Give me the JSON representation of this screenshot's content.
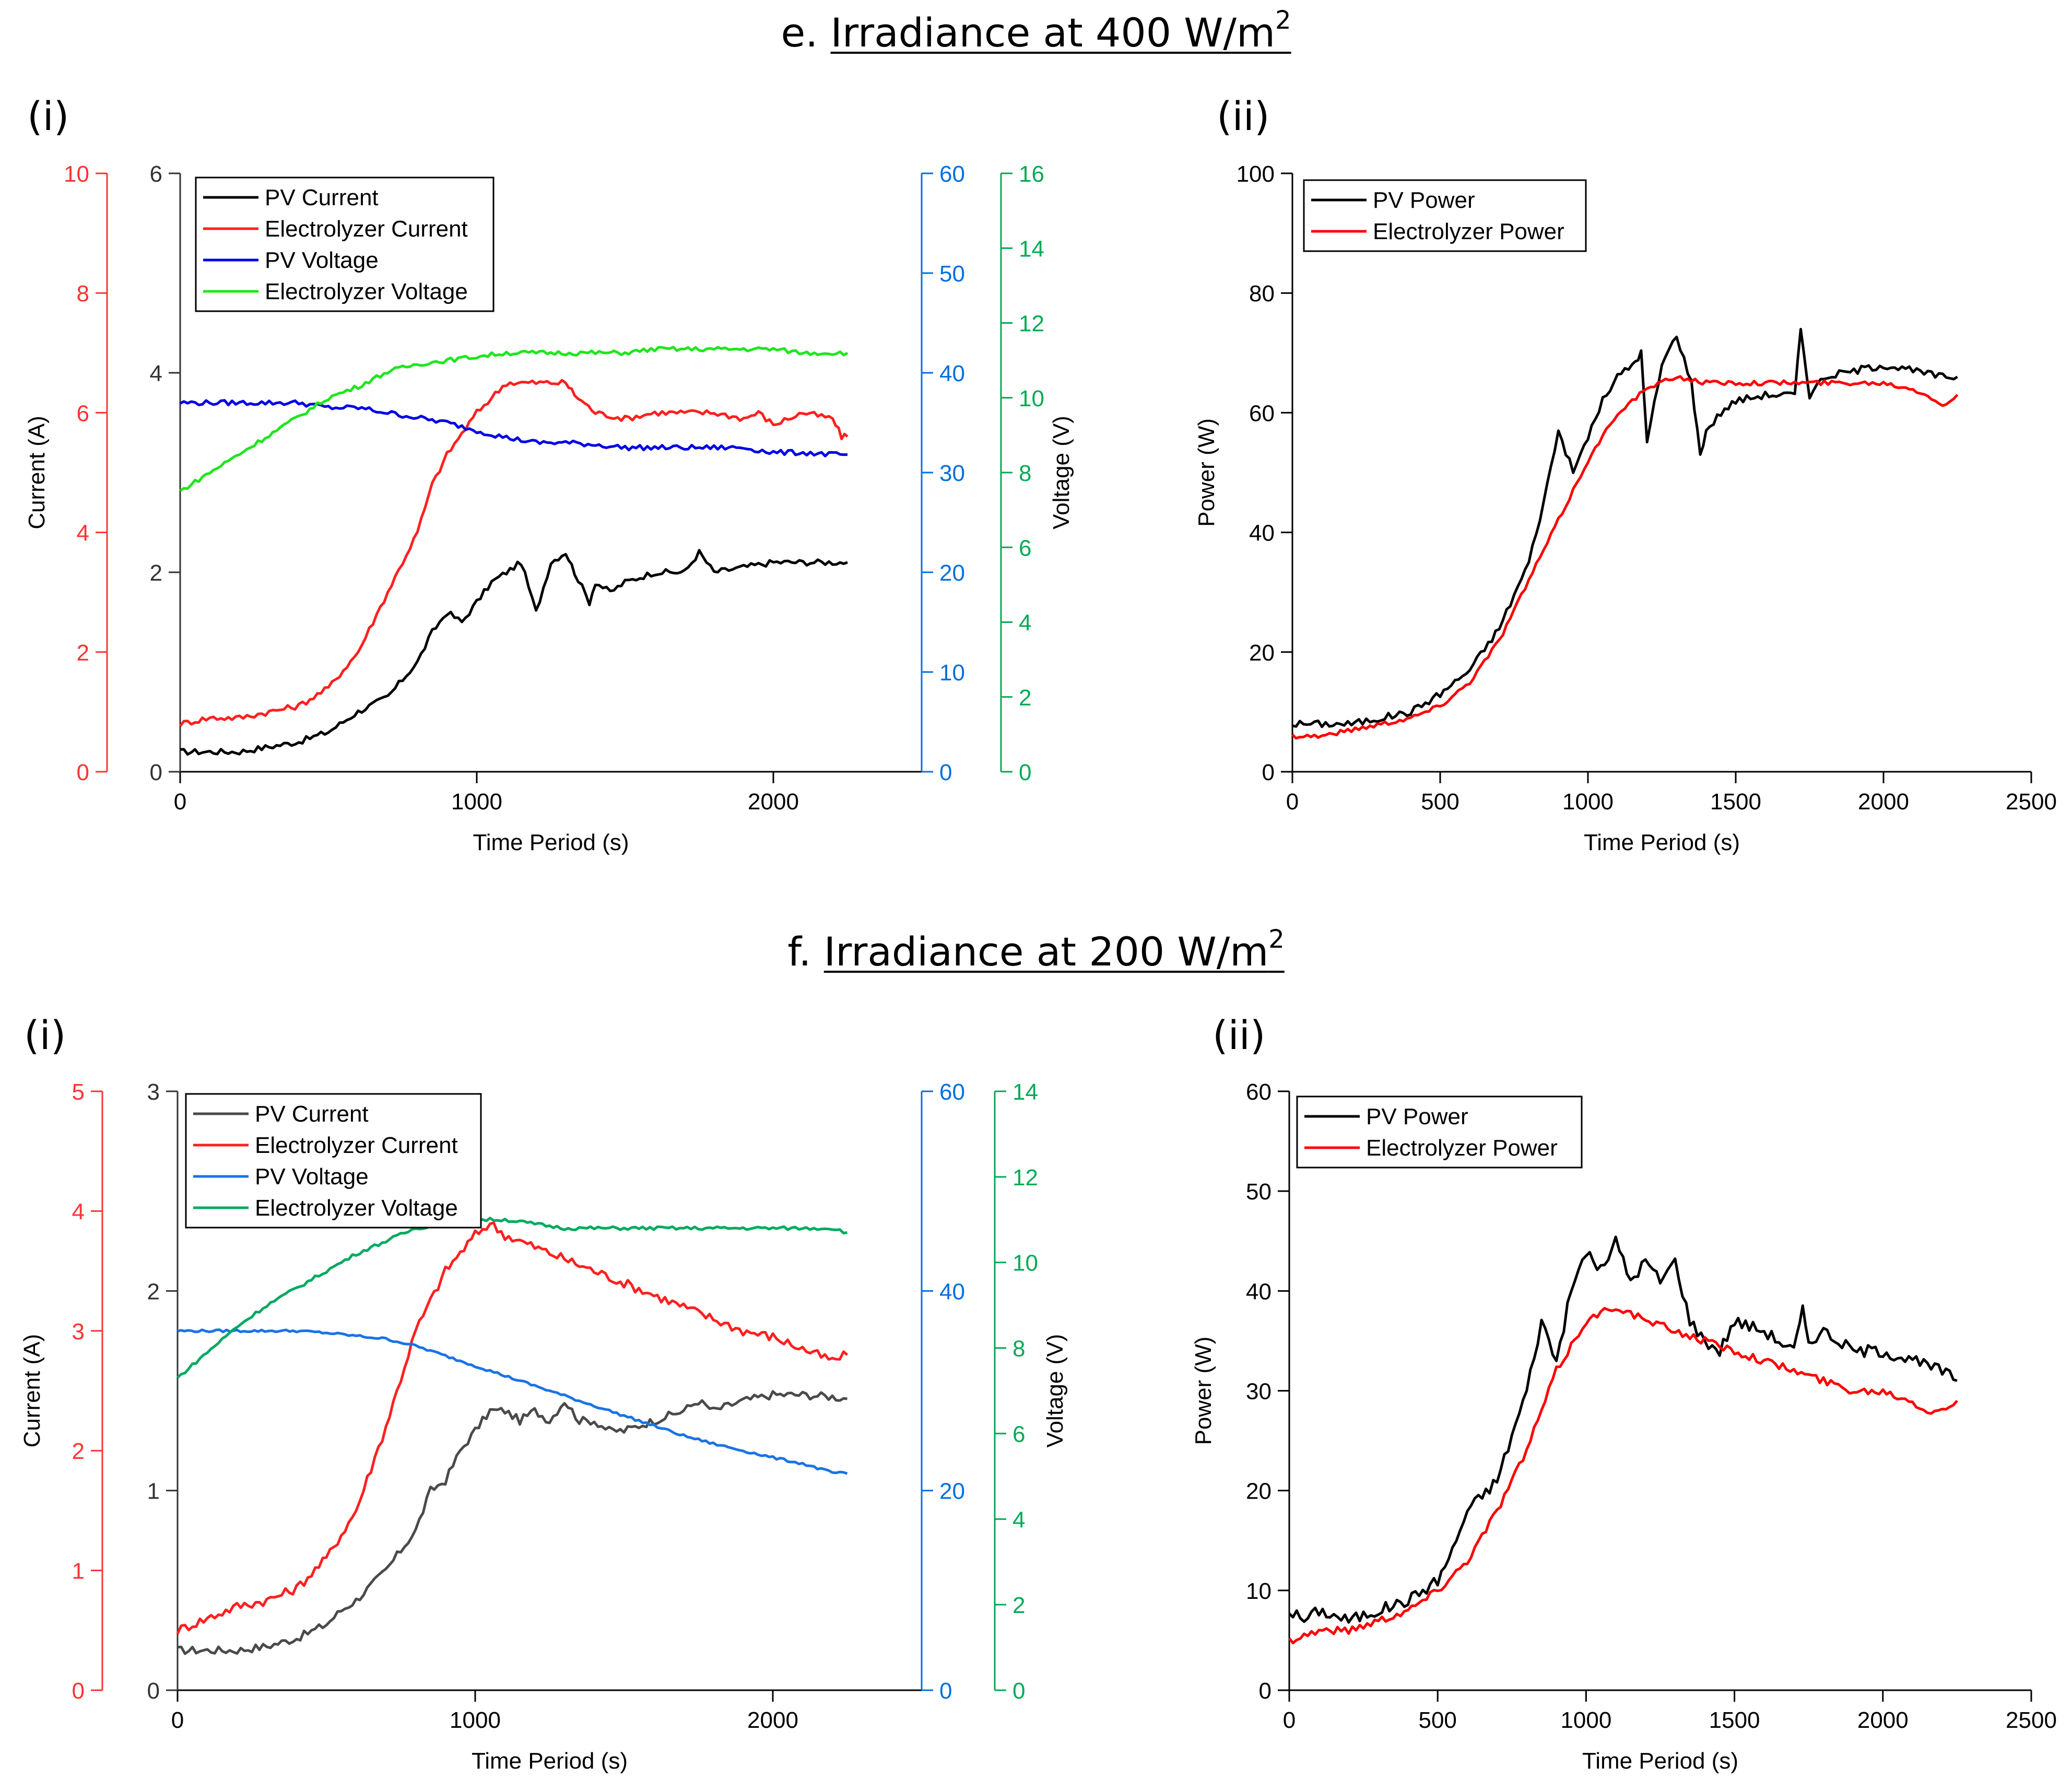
{
  "sections": [
    {
      "prefix": "e. ",
      "title_main": "Irradiance at 400 W/m",
      "title_sup": "2",
      "panel_i_label": "(i)",
      "panel_ii_label": "(ii)"
    },
    {
      "prefix": "f. ",
      "title_main": "Irradiance at 200 W/m",
      "title_sup": "2",
      "panel_i_label": "(i)",
      "panel_ii_label": "(ii)"
    }
  ],
  "colors": {
    "pv_current_e": "#000000",
    "pv_current_f": "#4a4a4a",
    "electrolyzer_current": "#ff2020",
    "pv_voltage_e": "#0000e6",
    "pv_voltage_f": "#1a73e6",
    "electrolyzer_voltage_e": "#1ee61e",
    "electrolyzer_voltage_f": "#00aa60",
    "red_axis": "#ff3333",
    "blue_axis": "#0070e0",
    "green_axis": "#00aa55",
    "pv_power": "#000000",
    "electrolyzer_power": "#ff0000"
  },
  "chart_data": [
    {
      "id": "e-i",
      "type": "line",
      "xlabel": "Time Period (s)",
      "ylabel_left": "Current (A)",
      "ylabel_right": "Voltage (V)",
      "xlim": [
        0,
        2500
      ],
      "xticks": [
        "0",
        "1000",
        "2000"
      ],
      "xtick_values": [
        0,
        1000,
        2000
      ],
      "axes": {
        "black_current": {
          "lim": [
            0,
            6
          ],
          "ticks": [
            "0",
            "2",
            "4",
            "6"
          ],
          "tick_values": [
            0,
            2,
            4,
            6
          ]
        },
        "red_current": {
          "lim": [
            0,
            10
          ],
          "ticks": [
            "0",
            "2",
            "4",
            "6",
            "8",
            "10"
          ],
          "tick_values": [
            0,
            2,
            4,
            6,
            8,
            10
          ]
        },
        "blue_voltage": {
          "lim": [
            0,
            60
          ],
          "ticks": [
            "0",
            "10",
            "20",
            "30",
            "40",
            "50",
            "60"
          ],
          "tick_values": [
            0,
            10,
            20,
            30,
            40,
            50,
            60
          ]
        },
        "green_voltage": {
          "lim": [
            0,
            16
          ],
          "ticks": [
            "0",
            "2",
            "4",
            "6",
            "8",
            "10",
            "12",
            "14",
            "16"
          ],
          "tick_values": [
            0,
            2,
            4,
            6,
            8,
            10,
            12,
            14,
            16
          ]
        }
      },
      "legend": [
        "PV Current",
        "Electrolyzer Current",
        "PV Voltage",
        "Electrolyzer Voltage"
      ],
      "legend_position": "top-left",
      "series": [
        {
          "name": "PV Current",
          "axis": "black_current",
          "x": [
            0,
            100,
            200,
            300,
            400,
            500,
            600,
            700,
            800,
            850,
            900,
            950,
            1000,
            1050,
            1100,
            1150,
            1200,
            1250,
            1300,
            1330,
            1380,
            1400,
            1450,
            1500,
            1600,
            1700,
            1750,
            1800,
            1900,
            2000,
            2100,
            2200,
            2250
          ],
          "y": [
            0.2,
            0.2,
            0.2,
            0.25,
            0.3,
            0.4,
            0.6,
            0.75,
            1.1,
            1.4,
            1.6,
            1.5,
            1.7,
            1.9,
            2.0,
            2.1,
            1.6,
            2.1,
            2.2,
            2.0,
            1.7,
            1.9,
            1.8,
            1.9,
            2.0,
            2.0,
            2.2,
            2.0,
            2.05,
            2.1,
            2.1,
            2.1,
            2.1
          ]
        },
        {
          "name": "Electrolyzer Current",
          "axis": "red_current",
          "x": [
            0,
            100,
            200,
            300,
            400,
            500,
            600,
            700,
            800,
            850,
            900,
            1000,
            1100,
            1200,
            1300,
            1330,
            1400,
            1500,
            1600,
            1700,
            1800,
            1900,
            1950,
            2000,
            2100,
            2200,
            2230,
            2250
          ],
          "y": [
            0.8,
            0.9,
            0.9,
            1.0,
            1.1,
            1.4,
            2.0,
            3.0,
            4.0,
            4.8,
            5.3,
            6.0,
            6.5,
            6.5,
            6.5,
            6.3,
            6.0,
            5.9,
            6.0,
            6.0,
            6.0,
            5.9,
            6.0,
            5.8,
            6.0,
            5.9,
            5.6,
            5.6
          ]
        },
        {
          "name": "PV Voltage",
          "axis": "blue_voltage",
          "x": [
            0,
            100,
            200,
            300,
            400,
            500,
            600,
            700,
            800,
            900,
            1000,
            1100,
            1200,
            1300,
            1400,
            1500,
            1600,
            1700,
            1800,
            1900,
            2000,
            2100,
            2200,
            2250
          ],
          "y": [
            37.0,
            37.0,
            37.0,
            37.0,
            37.0,
            36.5,
            36.5,
            36.0,
            35.5,
            35.0,
            34.2,
            33.5,
            33.0,
            33.0,
            32.8,
            32.5,
            32.5,
            32.5,
            32.5,
            32.5,
            32.0,
            32.0,
            31.8,
            31.8
          ]
        },
        {
          "name": "Electrolyzer Voltage",
          "axis": "green_voltage",
          "x": [
            0,
            100,
            200,
            300,
            400,
            500,
            600,
            700,
            800,
            900,
            1000,
            1100,
            1200,
            1300,
            1400,
            1500,
            1600,
            1700,
            1800,
            1900,
            2000,
            2100,
            2200,
            2250
          ],
          "y": [
            7.5,
            8.0,
            8.5,
            9.0,
            9.5,
            10.0,
            10.3,
            10.7,
            10.9,
            11.0,
            11.1,
            11.2,
            11.2,
            11.2,
            11.2,
            11.2,
            11.3,
            11.3,
            11.3,
            11.3,
            11.3,
            11.2,
            11.2,
            11.2
          ]
        }
      ]
    },
    {
      "id": "e-ii",
      "type": "line",
      "xlabel": "Time Period (s)",
      "ylabel": "Power (W)",
      "xlim": [
        0,
        2500
      ],
      "ylim": [
        0,
        100
      ],
      "xticks": [
        "0",
        "500",
        "1000",
        "1500",
        "2000",
        "2500"
      ],
      "xtick_values": [
        0,
        500,
        1000,
        1500,
        2000,
        2500
      ],
      "yticks": [
        "0",
        "20",
        "40",
        "60",
        "80",
        "100"
      ],
      "ytick_values": [
        0,
        20,
        40,
        60,
        80,
        100
      ],
      "legend": [
        "PV Power",
        "Electrolyzer Power"
      ],
      "legend_position": "top-left",
      "series": [
        {
          "name": "PV Power",
          "x": [
            0,
            100,
            200,
            300,
            400,
            500,
            550,
            600,
            700,
            800,
            850,
            900,
            950,
            1000,
            1050,
            1100,
            1150,
            1180,
            1200,
            1250,
            1300,
            1350,
            1380,
            1400,
            1450,
            1500,
            1600,
            1700,
            1720,
            1750,
            1800,
            1900,
            2000,
            2100,
            2200,
            2250
          ],
          "y": [
            8,
            8,
            8,
            9,
            10,
            13,
            15,
            17,
            24,
            35,
            45,
            57,
            50,
            56,
            62,
            66,
            68,
            70,
            55,
            68,
            73,
            65,
            53,
            57,
            60,
            62,
            63,
            63,
            74,
            63,
            66,
            67,
            68,
            67,
            66,
            66
          ]
        },
        {
          "name": "Electrolyzer Power",
          "x": [
            0,
            100,
            200,
            300,
            400,
            500,
            600,
            700,
            800,
            900,
            1000,
            1100,
            1200,
            1300,
            1400,
            1500,
            1600,
            1700,
            1800,
            1900,
            2000,
            2100,
            2150,
            2200,
            2250
          ],
          "y": [
            6,
            6,
            7,
            8,
            9,
            11,
            15,
            22,
            32,
            42,
            52,
            60,
            64,
            66,
            65,
            65,
            65,
            65,
            65,
            65,
            65,
            64,
            63,
            61,
            63
          ]
        }
      ]
    },
    {
      "id": "f-i",
      "type": "line",
      "xlabel": "Time Period (s)",
      "ylabel_left": "Current (A)",
      "ylabel_right": "Voltage (V)",
      "xlim": [
        0,
        2500
      ],
      "xticks": [
        "0",
        "1000",
        "2000"
      ],
      "xtick_values": [
        0,
        1000,
        2000
      ],
      "axes": {
        "black_current": {
          "lim": [
            0,
            3
          ],
          "ticks": [
            "0",
            "1",
            "2",
            "3"
          ],
          "tick_values": [
            0,
            1,
            2,
            3
          ]
        },
        "red_current": {
          "lim": [
            0,
            5
          ],
          "ticks": [
            "0",
            "1",
            "2",
            "3",
            "4",
            "5"
          ],
          "tick_values": [
            0,
            1,
            2,
            3,
            4,
            5
          ]
        },
        "blue_voltage": {
          "lim": [
            0,
            60
          ],
          "ticks": [
            "0",
            "20",
            "40",
            "60"
          ],
          "tick_values": [
            0,
            20,
            40,
            60
          ]
        },
        "green_voltage": {
          "lim": [
            0,
            14
          ],
          "ticks": [
            "0",
            "2",
            "4",
            "6",
            "8",
            "10",
            "12",
            "14"
          ],
          "tick_values": [
            0,
            2,
            4,
            6,
            8,
            10,
            12,
            14
          ]
        }
      },
      "legend": [
        "PV Current",
        "Electrolyzer Current",
        "PV Voltage",
        "Electrolyzer Voltage"
      ],
      "legend_position": "top-left",
      "series": [
        {
          "name": "PV Current",
          "axis": "black_current",
          "x": [
            0,
            100,
            200,
            300,
            400,
            500,
            550,
            600,
            700,
            800,
            850,
            900,
            950,
            1000,
            1050,
            1100,
            1150,
            1200,
            1250,
            1300,
            1350,
            1400,
            1450,
            1500,
            1600,
            1700,
            1750,
            1800,
            1900,
            2000,
            2100,
            2200,
            2250
          ],
          "y": [
            0.2,
            0.2,
            0.2,
            0.22,
            0.26,
            0.33,
            0.4,
            0.45,
            0.6,
            0.8,
            1.0,
            1.05,
            1.2,
            1.3,
            1.4,
            1.4,
            1.35,
            1.4,
            1.35,
            1.45,
            1.35,
            1.35,
            1.3,
            1.3,
            1.35,
            1.4,
            1.45,
            1.4,
            1.45,
            1.48,
            1.48,
            1.47,
            1.46
          ]
        },
        {
          "name": "Electrolyzer Current",
          "axis": "red_current",
          "x": [
            0,
            100,
            200,
            300,
            400,
            500,
            600,
            700,
            800,
            900,
            1000,
            1050,
            1100,
            1200,
            1300,
            1400,
            1500,
            1600,
            1700,
            1800,
            1900,
            2000,
            2100,
            2200,
            2250
          ],
          "y": [
            0.5,
            0.6,
            0.7,
            0.75,
            0.85,
            1.1,
            1.5,
            2.2,
            3.0,
            3.5,
            3.8,
            3.9,
            3.8,
            3.7,
            3.6,
            3.5,
            3.4,
            3.3,
            3.2,
            3.1,
            3.0,
            2.95,
            2.85,
            2.75,
            2.8
          ]
        },
        {
          "name": "PV Voltage",
          "axis": "blue_voltage",
          "x": [
            0,
            200,
            400,
            500,
            600,
            700,
            800,
            900,
            1000,
            1100,
            1200,
            1300,
            1400,
            1500,
            1600,
            1700,
            1800,
            1900,
            2000,
            2100,
            2200,
            2250
          ],
          "y": [
            36.0,
            36.0,
            36.0,
            35.8,
            35.5,
            35.2,
            34.5,
            33.5,
            32.5,
            31.5,
            30.5,
            29.5,
            28.5,
            27.5,
            26.5,
            25.5,
            24.7,
            24.0,
            23.3,
            22.7,
            21.8,
            21.7
          ]
        },
        {
          "name": "Electrolyzer Voltage",
          "axis": "green_voltage",
          "x": [
            0,
            100,
            200,
            300,
            400,
            500,
            600,
            700,
            800,
            900,
            1000,
            1100,
            1200,
            1300,
            1400,
            1500,
            1600,
            1700,
            1800,
            1900,
            2000,
            2100,
            2200,
            2250
          ],
          "y": [
            7.3,
            7.9,
            8.5,
            9.0,
            9.4,
            9.8,
            10.2,
            10.5,
            10.8,
            10.9,
            11.0,
            11.0,
            10.9,
            10.8,
            10.8,
            10.8,
            10.8,
            10.8,
            10.8,
            10.8,
            10.8,
            10.8,
            10.8,
            10.7
          ]
        }
      ]
    },
    {
      "id": "f-ii",
      "type": "line",
      "xlabel": "Time Period (s)",
      "ylabel": "Power (W)",
      "xlim": [
        0,
        2500
      ],
      "ylim": [
        0,
        60
      ],
      "xticks": [
        "0",
        "500",
        "1000",
        "1500",
        "2000",
        "2500"
      ],
      "xtick_values": [
        0,
        500,
        1000,
        1500,
        2000,
        2500
      ],
      "yticks": [
        "0",
        "10",
        "20",
        "30",
        "40",
        "50",
        "60"
      ],
      "ytick_values": [
        0,
        10,
        20,
        30,
        40,
        50,
        60
      ],
      "legend": [
        "PV Power",
        "Electrolyzer Power"
      ],
      "legend_position": "top-left",
      "series": [
        {
          "name": "PV Power",
          "x": [
            0,
            50,
            100,
            200,
            300,
            400,
            500,
            550,
            600,
            700,
            800,
            850,
            900,
            950,
            1000,
            1050,
            1100,
            1150,
            1200,
            1250,
            1300,
            1350,
            1400,
            1450,
            1500,
            1600,
            1700,
            1730,
            1750,
            1800,
            1900,
            2000,
            2100,
            2200,
            2250
          ],
          "y": [
            8,
            7,
            8,
            7,
            8,
            9,
            11,
            14,
            18,
            21,
            30,
            37,
            33,
            40,
            44,
            42,
            45,
            41,
            43,
            41,
            43,
            37,
            35,
            34,
            37,
            36,
            34,
            38,
            35,
            36,
            34,
            34,
            33,
            32,
            31
          ]
        },
        {
          "name": "Electrolyzer Power",
          "x": [
            0,
            100,
            200,
            300,
            400,
            500,
            600,
            700,
            800,
            900,
            1000,
            1100,
            1200,
            1300,
            1400,
            1500,
            1600,
            1700,
            1800,
            1900,
            2000,
            2100,
            2150,
            2200,
            2250
          ],
          "y": [
            5,
            6,
            6,
            7,
            8,
            10,
            13,
            18,
            24,
            32,
            37,
            38.5,
            37,
            36,
            35,
            34,
            33,
            32,
            31,
            30,
            30,
            29,
            28,
            28,
            29
          ]
        }
      ]
    }
  ]
}
